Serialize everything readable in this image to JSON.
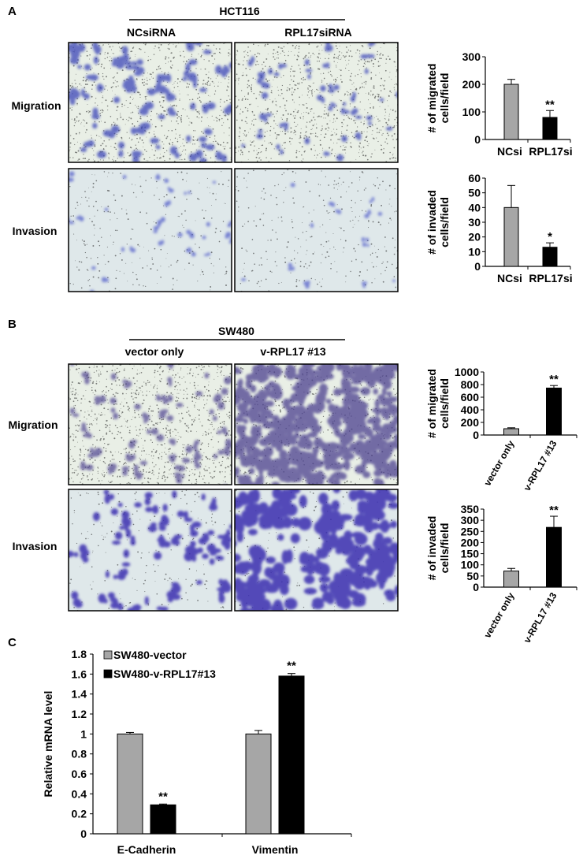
{
  "panels": [
    {
      "letter": "A",
      "cell_line": "HCT116",
      "columns": [
        "NCsiRNA",
        "RPL17siRNA"
      ],
      "rows": [
        "Migration",
        "Invasion"
      ]
    },
    {
      "letter": "B",
      "cell_line": "SW480",
      "columns": [
        "vector only",
        "v-RPL17 #13"
      ],
      "rows": [
        "Migration",
        "Invasion"
      ]
    },
    {
      "letter": "C"
    }
  ],
  "micrograph_colors": {
    "A_migration": "#3a45b8",
    "A_invasion": "#4a55c8",
    "B_migration": "#4b3f8f",
    "B_invasion": "#3b2fb0",
    "background_light": "#e9efe6",
    "background_invasion": "#dfe8ea"
  },
  "chart_data": [
    {
      "id": "a_mig",
      "type": "bar",
      "categories": [
        "NCsi",
        "RPL17si"
      ],
      "values": [
        200,
        80
      ],
      "errors": [
        18,
        25
      ],
      "colors": [
        "#a6a6a6",
        "#000000"
      ],
      "significance": [
        "",
        "**"
      ],
      "ylabel": [
        "# of migrated",
        "cells/field"
      ],
      "ylim": [
        0,
        300
      ],
      "yticks": [
        0,
        100,
        200,
        300
      ],
      "xlabel_rotation": 0
    },
    {
      "id": "a_inv",
      "type": "bar",
      "categories": [
        "NCsi",
        "RPL17si"
      ],
      "values": [
        40,
        13
      ],
      "errors": [
        15,
        3
      ],
      "colors": [
        "#a6a6a6",
        "#000000"
      ],
      "significance": [
        "",
        "*"
      ],
      "ylabel": [
        "# of invaded",
        "cells/field"
      ],
      "ylim": [
        0,
        60
      ],
      "yticks": [
        0,
        10,
        20,
        30,
        40,
        50,
        60
      ],
      "xlabel_rotation": 0
    },
    {
      "id": "b_mig",
      "type": "bar",
      "categories": [
        "vector only",
        "v-RPL17 #13"
      ],
      "values": [
        100,
        745
      ],
      "errors": [
        15,
        40
      ],
      "colors": [
        "#a6a6a6",
        "#000000"
      ],
      "significance": [
        "",
        "**"
      ],
      "ylabel": [
        "# of migrated",
        "cells/field"
      ],
      "ylim": [
        0,
        1000
      ],
      "yticks": [
        0,
        200,
        400,
        600,
        800,
        1000
      ],
      "xlabel_rotation": -60
    },
    {
      "id": "b_inv",
      "type": "bar",
      "categories": [
        "vector only",
        "v-RPL17 #13"
      ],
      "values": [
        72,
        268
      ],
      "errors": [
        12,
        50
      ],
      "colors": [
        "#a6a6a6",
        "#000000"
      ],
      "significance": [
        "",
        "**"
      ],
      "ylabel": [
        "# of invaded",
        "cells/field"
      ],
      "ylim": [
        0,
        350
      ],
      "yticks": [
        0,
        50,
        100,
        150,
        200,
        250,
        300,
        350
      ],
      "xlabel_rotation": -60
    },
    {
      "id": "c_mrna",
      "type": "bar",
      "categories": [
        "E-Cadherin",
        "Vimentin"
      ],
      "series": [
        {
          "name": "SW480-vector",
          "values": [
            1.0,
            1.0
          ],
          "errors": [
            0.015,
            0.035
          ],
          "color": "#a6a6a6",
          "significance": [
            "",
            ""
          ]
        },
        {
          "name": "SW480-v-RPL17#13",
          "values": [
            0.29,
            1.58
          ],
          "errors": [
            0.008,
            0.025
          ],
          "color": "#000000",
          "significance": [
            "**",
            "**"
          ]
        }
      ],
      "ylabel": [
        "Relative mRNA level"
      ],
      "ylim": [
        0,
        1.8
      ],
      "yticks": [
        0,
        0.2,
        0.4,
        0.6,
        0.8,
        1,
        1.2,
        1.4,
        1.6,
        1.8
      ],
      "legend_position": "top-left"
    }
  ]
}
